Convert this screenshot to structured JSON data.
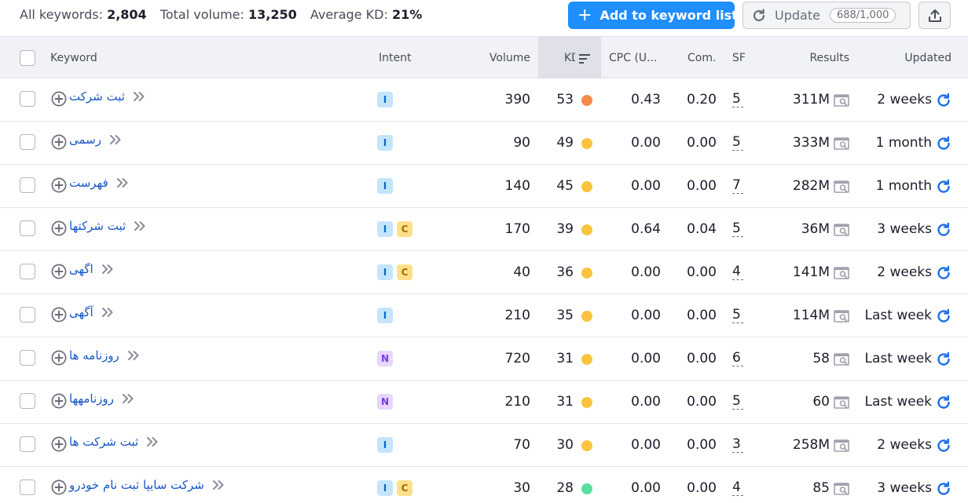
{
  "summary": {
    "all_keywords_label": "All keywords:",
    "all_keywords_value": "2,804",
    "total_volume_label": "Total volume:",
    "total_volume_value": "13,250",
    "avg_kd_label": "Average KD:",
    "avg_kd_value": "21%"
  },
  "toolbar": {
    "add_label": "Add to keyword list",
    "update_label": "Update",
    "update_quota": "688/1,000"
  },
  "columns": {
    "keyword": "Keyword",
    "intent": "Intent",
    "volume": "Volume",
    "kd": "KD",
    "cpc": "CPC (U...",
    "com": "Com.",
    "sf": "SF",
    "results": "Results",
    "updated": "Updated"
  },
  "colors": {
    "accent": "#1f8eff",
    "kd_orange": "#f4894b",
    "kd_yellow": "#fcc43e",
    "kd_green": "#59dea0",
    "link": "#1a56c4"
  },
  "rows": [
    {
      "keyword": "ثبت شرکت",
      "intents": [
        "I"
      ],
      "volume": "390",
      "kd": "53",
      "kd_color": "#f4894b",
      "cpc": "0.43",
      "com": "0.20",
      "sf": "5",
      "results": "311M",
      "updated": "2 weeks"
    },
    {
      "keyword": "رسمی",
      "intents": [
        "I"
      ],
      "volume": "90",
      "kd": "49",
      "kd_color": "#fcc43e",
      "cpc": "0.00",
      "com": "0.00",
      "sf": "5",
      "results": "333M",
      "updated": "1 month"
    },
    {
      "keyword": "فهرست",
      "intents": [
        "I"
      ],
      "volume": "140",
      "kd": "45",
      "kd_color": "#fcc43e",
      "cpc": "0.00",
      "com": "0.00",
      "sf": "7",
      "results": "282M",
      "updated": "1 month"
    },
    {
      "keyword": "ثبت شرکتها",
      "intents": [
        "I",
        "C"
      ],
      "volume": "170",
      "kd": "39",
      "kd_color": "#fcc43e",
      "cpc": "0.64",
      "com": "0.04",
      "sf": "5",
      "results": "36M",
      "updated": "3 weeks"
    },
    {
      "keyword": "اگهی",
      "intents": [
        "I",
        "C"
      ],
      "volume": "40",
      "kd": "36",
      "kd_color": "#fcc43e",
      "cpc": "0.00",
      "com": "0.00",
      "sf": "4",
      "results": "141M",
      "updated": "2 weeks"
    },
    {
      "keyword": "آگهی",
      "intents": [
        "I"
      ],
      "volume": "210",
      "kd": "35",
      "kd_color": "#fcc43e",
      "cpc": "0.00",
      "com": "0.00",
      "sf": "5",
      "results": "114M",
      "updated": "Last week"
    },
    {
      "keyword": "روزنامه ها",
      "intents": [
        "N"
      ],
      "volume": "720",
      "kd": "31",
      "kd_color": "#fcc43e",
      "cpc": "0.00",
      "com": "0.00",
      "sf": "6",
      "results": "58",
      "updated": "Last week"
    },
    {
      "keyword": "روزنامهها",
      "intents": [
        "N"
      ],
      "volume": "210",
      "kd": "31",
      "kd_color": "#fcc43e",
      "cpc": "0.00",
      "com": "0.00",
      "sf": "5",
      "results": "60",
      "updated": "Last week"
    },
    {
      "keyword": "ثبت شرکت ها",
      "intents": [
        "I"
      ],
      "volume": "70",
      "kd": "30",
      "kd_color": "#fcc43e",
      "cpc": "0.00",
      "com": "0.00",
      "sf": "3",
      "results": "258M",
      "updated": "2 weeks"
    },
    {
      "keyword": "شرکت سایپا ثبت نام خودرو",
      "intents": [
        "I",
        "C"
      ],
      "volume": "30",
      "kd": "28",
      "kd_color": "#59dea0",
      "cpc": "0.00",
      "com": "0.00",
      "sf": "4",
      "results": "85",
      "updated": "3 weeks"
    }
  ]
}
